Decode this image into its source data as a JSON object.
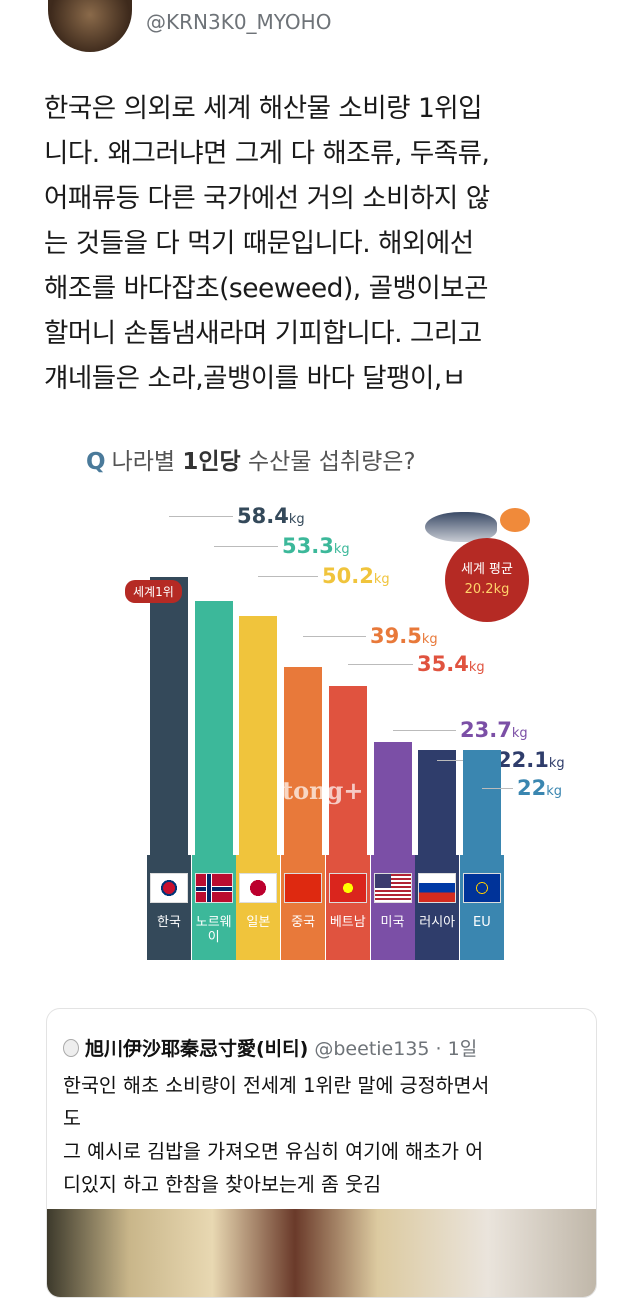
{
  "tweet": {
    "handle": "@KRN3K0_MYOHO",
    "lines": [
      "한국은 의외로 세계 해산물 소비량 1위입",
      "니다. 왜그러냐면 그게 다 해조류, 두족류,",
      "어패류등 다른 국가에선 거의 소비하지 않",
      "는 것들을 다 먹기 때문입니다. 해외에선",
      "해조를 바다잡초(seeweed), 골뱅이보곤",
      "할머니 손톱냄새라며 기피합니다. 그리고",
      "걔네들은 소라,골뱅이를 바다 달팽이,ㅂ"
    ]
  },
  "chart_data": {
    "type": "bar",
    "title_q": "Q",
    "title_pre": "나라별",
    "title_bold": "1인당",
    "title_post": "수산물 섭취량은?",
    "unit": "kg",
    "categories": [
      "한국",
      "노르웨이",
      "일본",
      "중국",
      "베트남",
      "미국",
      "러시아",
      "EU"
    ],
    "values": [
      58.4,
      53.3,
      50.2,
      39.5,
      35.4,
      23.7,
      22.1,
      22
    ],
    "labels": [
      "58.4",
      "53.3",
      "50.2",
      "39.5",
      "35.4",
      "23.7",
      "22.1",
      "22"
    ],
    "colors": [
      "#34495a",
      "#3cb89a",
      "#f0c43c",
      "#e8793a",
      "#e0533f",
      "#7b4fa6",
      "#2f3d6b",
      "#3a86b0"
    ],
    "badge": "세계1위",
    "world_avg_label": "세계 평균",
    "world_avg_value": "20.2kg",
    "watermark": "tong+"
  },
  "quote": {
    "name": "旭川伊沙耶秦忌寸愛(비티)",
    "handle": "@beetie135",
    "time": "· 1일",
    "lines": [
      "한국인 해초 소비량이 전세계 1위란 말에 긍정하면서",
      "도",
      "그 예시로 김밥을 가져오면 유심히 여기에 해초가 어",
      "디있지 하고 한참을 찾아보는게 좀 웃김"
    ]
  }
}
